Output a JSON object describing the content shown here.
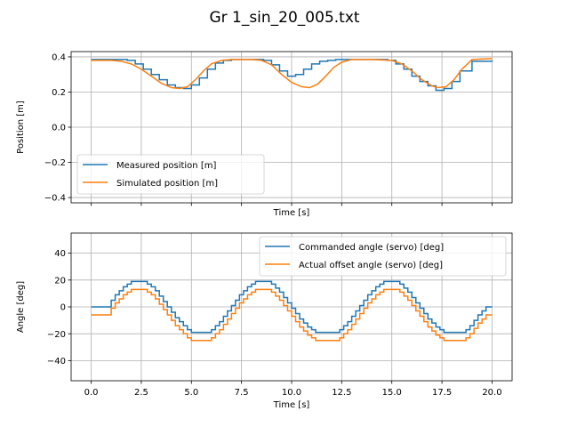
{
  "figure": {
    "title": "Gr 1_sin_20_005.txt"
  },
  "chart_data": [
    {
      "type": "line",
      "xlabel": "Time [s]",
      "ylabel": "Position [m]",
      "xlim": [
        -1.0,
        21.0
      ],
      "ylim": [
        -0.43,
        0.43
      ],
      "xticks": [
        0.0,
        2.5,
        5.0,
        7.5,
        10.0,
        12.5,
        15.0,
        17.5,
        20.0
      ],
      "xtick_labels_visible": false,
      "yticks": [
        -0.4,
        -0.2,
        0.0,
        0.2,
        0.4
      ],
      "ytick_labels": [
        "−0.4",
        "−0.2",
        "0.0",
        "0.2",
        "0.4"
      ],
      "grid": true,
      "legend": "lower-left",
      "series": [
        {
          "name": "Measured position [m]",
          "color": "#1f77b4",
          "step": true,
          "x": [
            0.0,
            1.0,
            1.8,
            2.2,
            2.6,
            3.0,
            3.4,
            3.8,
            4.2,
            4.6,
            5.0,
            5.4,
            5.8,
            6.2,
            6.6,
            7.0,
            7.5,
            8.0,
            8.6,
            9.0,
            9.4,
            9.8,
            10.2,
            10.6,
            11.0,
            11.4,
            11.8,
            12.2,
            12.8,
            13.5,
            14.2,
            14.8,
            15.2,
            15.6,
            16.0,
            16.4,
            16.8,
            17.2,
            17.6,
            18.0,
            18.4,
            19.0,
            20.0
          ],
          "y": [
            0.385,
            0.385,
            0.38,
            0.36,
            0.33,
            0.3,
            0.27,
            0.24,
            0.225,
            0.22,
            0.24,
            0.28,
            0.33,
            0.365,
            0.38,
            0.385,
            0.385,
            0.385,
            0.38,
            0.355,
            0.32,
            0.29,
            0.3,
            0.33,
            0.36,
            0.375,
            0.38,
            0.385,
            0.385,
            0.385,
            0.385,
            0.38,
            0.36,
            0.33,
            0.29,
            0.26,
            0.235,
            0.21,
            0.22,
            0.26,
            0.32,
            0.375,
            0.38
          ]
        },
        {
          "name": "Simulated position [m]",
          "color": "#ff7f0e",
          "step": false,
          "x": [
            0.0,
            1.0,
            1.5,
            2.0,
            2.5,
            3.0,
            3.5,
            4.0,
            4.4,
            4.8,
            5.2,
            5.6,
            6.0,
            6.5,
            7.0,
            7.5,
            8.0,
            8.5,
            9.0,
            9.5,
            10.0,
            10.5,
            10.9,
            11.3,
            11.7,
            12.1,
            12.5,
            13.0,
            14.0,
            15.0,
            15.5,
            16.0,
            16.5,
            17.0,
            17.3,
            17.7,
            18.1,
            18.5,
            19.0,
            20.0
          ],
          "y": [
            0.38,
            0.38,
            0.375,
            0.36,
            0.33,
            0.29,
            0.25,
            0.225,
            0.22,
            0.23,
            0.27,
            0.32,
            0.36,
            0.38,
            0.385,
            0.385,
            0.385,
            0.38,
            0.355,
            0.3,
            0.255,
            0.23,
            0.225,
            0.245,
            0.29,
            0.34,
            0.37,
            0.385,
            0.385,
            0.38,
            0.36,
            0.32,
            0.27,
            0.235,
            0.225,
            0.23,
            0.27,
            0.33,
            0.385,
            0.39
          ]
        }
      ]
    },
    {
      "type": "line",
      "xlabel": "Time [s]",
      "ylabel": "Angle [deg]",
      "xlim": [
        -1.0,
        21.0
      ],
      "ylim": [
        -55,
        55
      ],
      "xticks": [
        0.0,
        2.5,
        5.0,
        7.5,
        10.0,
        12.5,
        15.0,
        17.5,
        20.0
      ],
      "xtick_labels": [
        "0.0",
        "2.5",
        "5.0",
        "7.5",
        "10.0",
        "12.5",
        "15.0",
        "17.5",
        "20.0"
      ],
      "yticks": [
        -40,
        -20,
        0,
        20,
        40
      ],
      "ytick_labels": [
        "−40",
        "−20",
        "0",
        "20",
        "40"
      ],
      "grid": true,
      "legend": "top-right",
      "series": [
        {
          "name": "Commanded angle (servo) [deg]",
          "color": "#1f77b4",
          "step": true,
          "x": [
            0.0,
            0.8,
            1.0,
            1.2,
            1.4,
            1.6,
            1.8,
            2.0,
            2.5,
            2.8,
            3.0,
            3.2,
            3.4,
            3.6,
            3.8,
            4.0,
            4.2,
            4.4,
            4.6,
            4.8,
            5.0,
            5.8,
            6.0,
            6.2,
            6.4,
            6.6,
            6.8,
            7.0,
            7.2,
            7.4,
            7.6,
            7.8,
            8.0,
            8.2,
            8.8,
            9.0,
            9.2,
            9.4,
            9.6,
            9.8,
            10.0,
            10.2,
            10.4,
            10.6,
            10.8,
            11.0,
            11.2,
            11.4,
            12.2,
            12.4,
            12.6,
            12.8,
            13.0,
            13.2,
            13.4,
            13.6,
            13.8,
            14.0,
            14.2,
            14.4,
            14.6,
            15.2,
            15.4,
            15.6,
            15.8,
            16.0,
            16.2,
            16.4,
            16.6,
            16.8,
            17.0,
            17.2,
            17.4,
            17.6,
            18.5,
            18.7,
            18.9,
            19.1,
            19.3,
            19.5,
            19.7,
            20.0
          ],
          "y": [
            0,
            0,
            5,
            9,
            12,
            15,
            17,
            19,
            19,
            17,
            15,
            12,
            8,
            4,
            0,
            -4,
            -8,
            -11,
            -14,
            -17,
            -19,
            -19,
            -17,
            -14,
            -11,
            -7,
            -3,
            1,
            5,
            9,
            12,
            15,
            17,
            19,
            19,
            17,
            14,
            11,
            7,
            3,
            -1,
            -5,
            -9,
            -12,
            -15,
            -17,
            -19,
            -19,
            -19,
            -17,
            -14,
            -11,
            -7,
            -3,
            1,
            5,
            9,
            12,
            15,
            17,
            19,
            19,
            17,
            14,
            11,
            7,
            3,
            -1,
            -5,
            -9,
            -12,
            -15,
            -17,
            -19,
            -19,
            -17,
            -14,
            -10,
            -6,
            -3,
            0,
            0
          ]
        },
        {
          "name": "Actual offset angle (servo) [deg]",
          "color": "#ff7f0e",
          "step": true,
          "x": [
            0.0,
            0.8,
            1.0,
            1.2,
            1.4,
            1.6,
            1.8,
            2.0,
            2.5,
            2.8,
            3.0,
            3.2,
            3.4,
            3.6,
            3.8,
            4.0,
            4.2,
            4.4,
            4.6,
            4.8,
            5.0,
            5.8,
            6.0,
            6.2,
            6.4,
            6.6,
            6.8,
            7.0,
            7.2,
            7.4,
            7.6,
            7.8,
            8.0,
            8.2,
            8.8,
            9.0,
            9.2,
            9.4,
            9.6,
            9.8,
            10.0,
            10.2,
            10.4,
            10.6,
            10.8,
            11.0,
            11.2,
            11.4,
            12.2,
            12.4,
            12.6,
            12.8,
            13.0,
            13.2,
            13.4,
            13.6,
            13.8,
            14.0,
            14.2,
            14.4,
            14.6,
            15.2,
            15.4,
            15.6,
            15.8,
            16.0,
            16.2,
            16.4,
            16.6,
            16.8,
            17.0,
            17.2,
            17.4,
            17.6,
            18.5,
            18.7,
            18.9,
            19.1,
            19.3,
            19.5,
            19.7,
            20.0
          ],
          "y": [
            -6,
            -6,
            -1,
            3,
            6,
            9,
            11,
            13,
            13,
            11,
            9,
            6,
            2,
            -2,
            -6,
            -10,
            -14,
            -17,
            -20,
            -23,
            -25,
            -25,
            -23,
            -20,
            -17,
            -13,
            -9,
            -5,
            -1,
            3,
            6,
            9,
            11,
            13,
            13,
            11,
            8,
            5,
            1,
            -3,
            -7,
            -11,
            -15,
            -18,
            -21,
            -23,
            -25,
            -25,
            -25,
            -23,
            -20,
            -17,
            -13,
            -9,
            -5,
            -1,
            3,
            6,
            9,
            11,
            13,
            13,
            11,
            8,
            5,
            1,
            -3,
            -7,
            -11,
            -15,
            -18,
            -21,
            -23,
            -25,
            -25,
            -23,
            -20,
            -16,
            -12,
            -9,
            -6,
            -6
          ]
        }
      ]
    }
  ]
}
